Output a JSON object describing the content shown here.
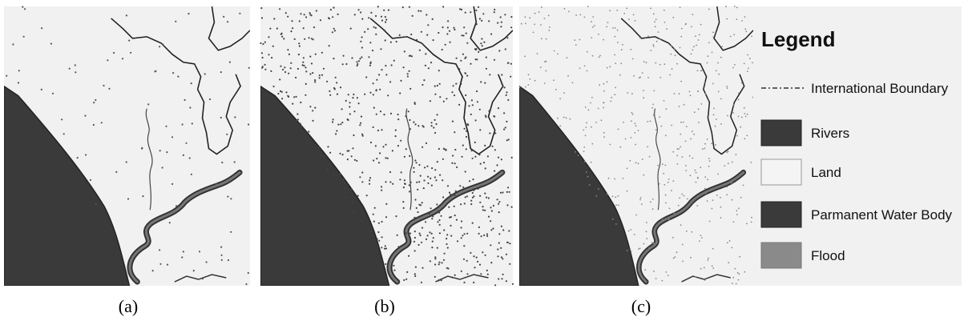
{
  "panels": [
    {
      "label": "(a)"
    },
    {
      "label": "(b)"
    },
    {
      "label": "(c)"
    }
  ],
  "legend": {
    "title": "Legend",
    "items": [
      {
        "label": "International Boundary"
      },
      {
        "label": "Rivers"
      },
      {
        "label": "Land"
      },
      {
        "label": "Parmanent Water Body"
      },
      {
        "label": "Flood"
      }
    ]
  }
}
